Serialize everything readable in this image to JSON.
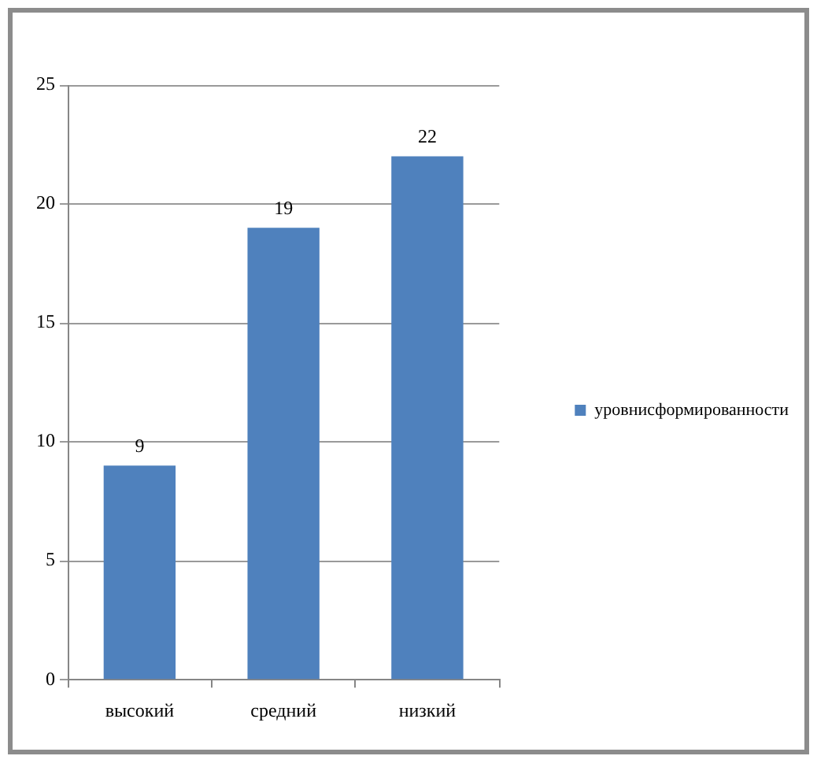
{
  "chart_data": {
    "type": "bar",
    "categories": [
      "высокий",
      "средний",
      "низкий"
    ],
    "series": [
      {
        "name": "уровнисформированности",
        "color": "#4f81bd",
        "values": [
          9,
          19,
          22
        ]
      }
    ],
    "ylim": [
      0,
      25
    ],
    "yticks": [
      0,
      5,
      10,
      15,
      20,
      25
    ],
    "grid": "y",
    "legend": "right",
    "data_labels": true
  }
}
